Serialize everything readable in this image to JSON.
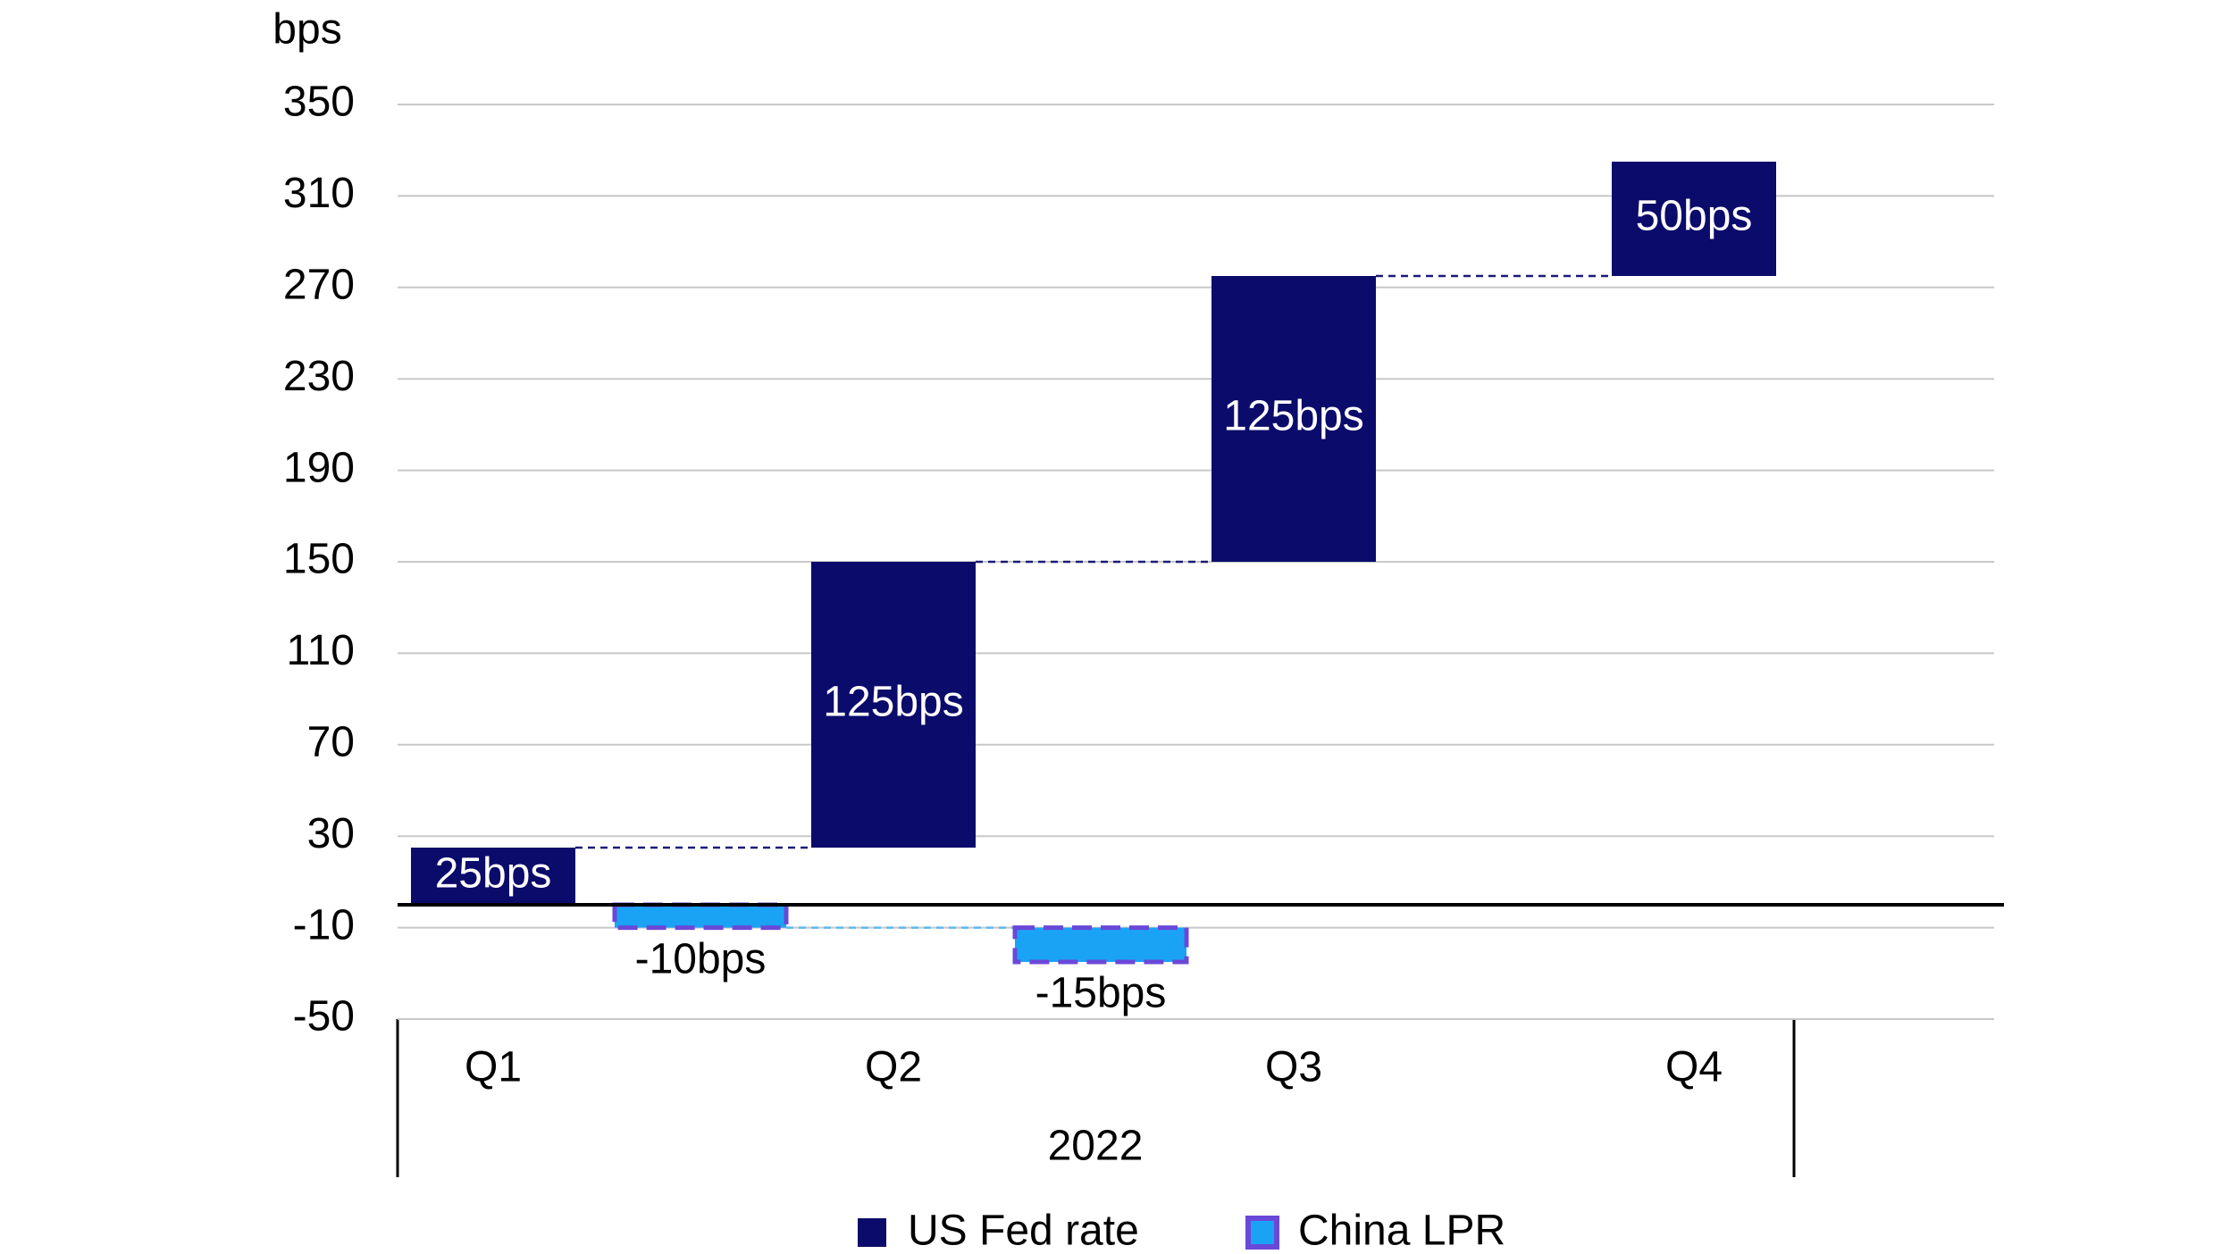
{
  "chart_data": {
    "type": "waterfall",
    "y_unit": "bps",
    "categories": [
      "Q1",
      "Q2",
      "Q3",
      "Q4"
    ],
    "group_label": "2022",
    "series": [
      {
        "name": "US Fed rate",
        "color": "#0b0b6b",
        "values": [
          25,
          125,
          125,
          50
        ],
        "value_labels": [
          "25bps",
          "125bps",
          "125bps",
          "50bps"
        ]
      },
      {
        "name": "China LPR",
        "color": "#1aa3f5",
        "edge_color": "#6a48d8",
        "values": [
          -10,
          -15,
          null,
          null
        ],
        "value_labels": [
          "-10bps",
          "-15bps",
          null,
          null
        ]
      }
    ],
    "ylim": [
      -50,
      350
    ],
    "yticks": [
      -50,
      -10,
      30,
      70,
      110,
      150,
      190,
      230,
      270,
      310,
      350
    ],
    "grid": true,
    "legend": "bottom"
  }
}
